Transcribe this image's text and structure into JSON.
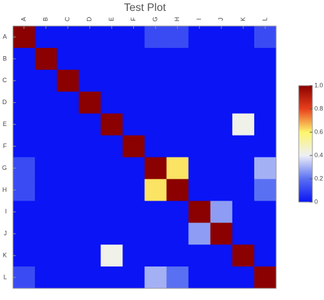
{
  "chart_data": {
    "type": "heatmap",
    "title": "Test Plot",
    "categories": [
      "A",
      "B",
      "C",
      "D",
      "E",
      "F",
      "G",
      "H",
      "I",
      "J",
      "K",
      "L"
    ],
    "z": [
      [
        1,
        0,
        0,
        0,
        0,
        0,
        0.12,
        0.12,
        0,
        0,
        0,
        0.12
      ],
      [
        0,
        1,
        0,
        0,
        0,
        0,
        0,
        0,
        0,
        0,
        0,
        0
      ],
      [
        0,
        0,
        1,
        0,
        0,
        0,
        0,
        0,
        0,
        0,
        0,
        0
      ],
      [
        0,
        0,
        0,
        1,
        0,
        0,
        0,
        0,
        0,
        0,
        0,
        0
      ],
      [
        0,
        0,
        0,
        0,
        1,
        0,
        0,
        0,
        0,
        0,
        0.42,
        0
      ],
      [
        0,
        0,
        0,
        0,
        0,
        1,
        0,
        0,
        0,
        0,
        0,
        0
      ],
      [
        0.12,
        0,
        0,
        0,
        0,
        0,
        1,
        0.62,
        0,
        0,
        0,
        0.3
      ],
      [
        0.12,
        0,
        0,
        0,
        0,
        0,
        0.62,
        1,
        0,
        0,
        0,
        0.2
      ],
      [
        0,
        0,
        0,
        0,
        0,
        0,
        0,
        0,
        1,
        0.27,
        0,
        0
      ],
      [
        0,
        0,
        0,
        0,
        0,
        0,
        0,
        0,
        0.27,
        1,
        0,
        0
      ],
      [
        0,
        0,
        0,
        0,
        0.42,
        0,
        0,
        0,
        0,
        0,
        1,
        0
      ],
      [
        0.12,
        0,
        0,
        0,
        0,
        0,
        0.3,
        0.2,
        0,
        0,
        0,
        1
      ]
    ],
    "colormap": [
      [
        0,
        "#0a14f5"
      ],
      [
        0.2,
        "#5a70f2"
      ],
      [
        0.4,
        "#eef0f6"
      ],
      [
        0.6,
        "#fdf56c"
      ],
      [
        0.8,
        "#e8401c"
      ],
      [
        1,
        "#8b0000"
      ]
    ],
    "colorbar_lim": [
      0,
      1
    ],
    "colorbar_ticks": [
      0,
      0.2,
      0.4,
      0.6,
      0.8,
      {
        "value": 1,
        "label": "1.0"
      }
    ]
  }
}
